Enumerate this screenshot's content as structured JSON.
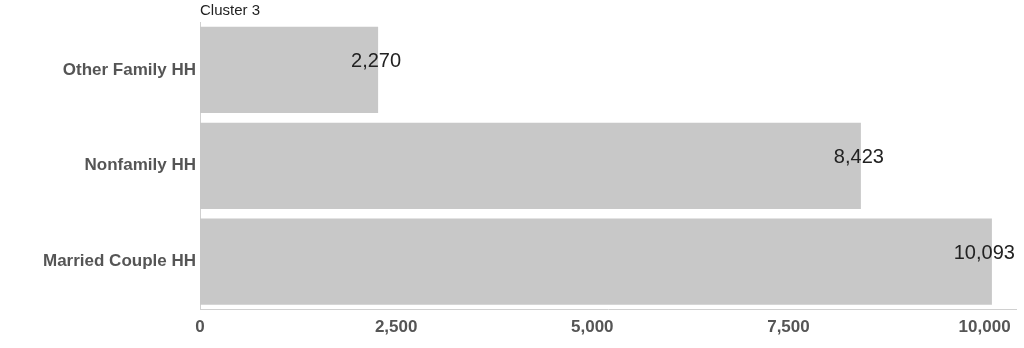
{
  "chart_data": {
    "type": "bar",
    "orientation": "horizontal",
    "title": "Cluster 3",
    "categories": [
      "Other Family HH",
      "Nonfamily HH",
      "Married Couple HH"
    ],
    "values": [
      2270,
      8423,
      10093
    ],
    "value_labels": [
      "2,270",
      "8,423",
      "10,093"
    ],
    "data_labels": true,
    "color": "#c8c8c8",
    "xlim": [
      0,
      10400
    ],
    "xticks": [
      0,
      {
        "value": 2500,
        "label": "2,500"
      },
      {
        "value": 5000,
        "label": "5,000"
      },
      {
        "value": 7500,
        "label": "7,500"
      },
      {
        "value": 10000,
        "label": "10,000"
      }
    ],
    "grid": false
  }
}
